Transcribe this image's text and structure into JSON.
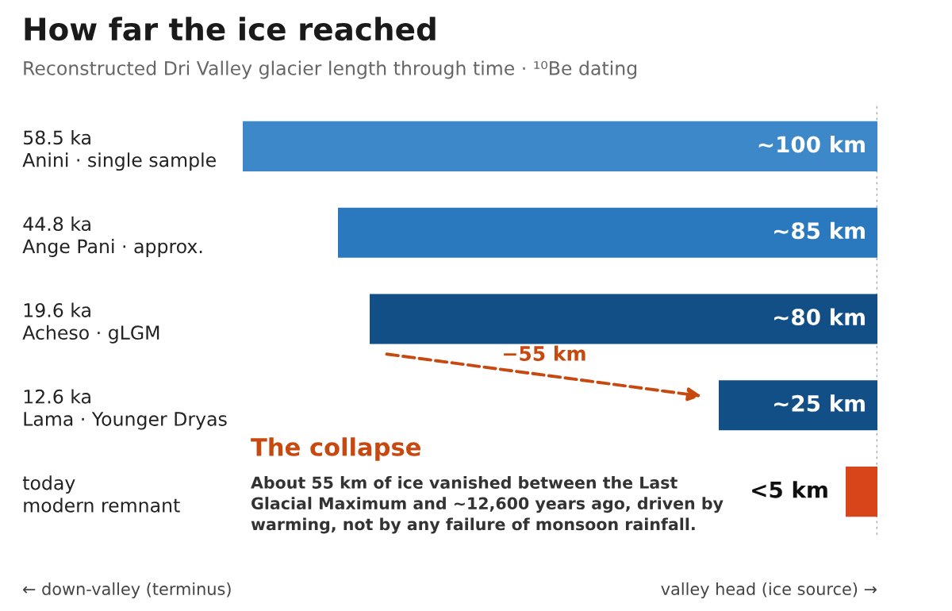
{
  "chart_data": {
    "type": "bar",
    "orientation": "horizontal",
    "title": "How far the ice reached",
    "subtitle": "Reconstructed Dri Valley glacier length through time · ¹⁰Be dating",
    "categories": [
      "58.5 ka\nAnini · single sample",
      "44.8 ka\nAnge Pani · approx.",
      "19.6 ka\nAcheso · gLGM",
      "12.6 ka\nLama · Younger Dryas",
      "today\nmodern remnant"
    ],
    "values": [
      100,
      85,
      80,
      25,
      5
    ],
    "colors": [
      "#3d88c8",
      "#2a79bf",
      "#124f87",
      "#124f87",
      "#d9451a"
    ],
    "value_labels": [
      "~100 km",
      "~85 km",
      "~80 km",
      "~25 km",
      "<5 km"
    ],
    "xlim": [
      100,
      0
    ],
    "tick_labels": "y",
    "ref_lines": [
      {
        "axis": "x",
        "value": 0,
        "color": "#aaaaaa",
        "line_style": "dotted"
      }
    ],
    "annotations": [
      "−55 km",
      "The collapse",
      "About 55 km of ice vanished between the Last Glacial Maximum and ~12,600 years ago, driven by warming, not by any failure of monsoon rainfall.",
      "← down-valley (terminus)",
      "valley head (ice source) →"
    ]
  }
}
